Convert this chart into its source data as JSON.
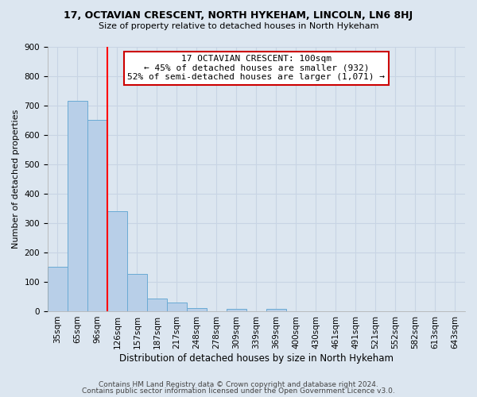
{
  "title": "17, OCTAVIAN CRESCENT, NORTH HYKEHAM, LINCOLN, LN6 8HJ",
  "subtitle": "Size of property relative to detached houses in North Hykeham",
  "xlabel": "Distribution of detached houses by size in North Hykeham",
  "ylabel": "Number of detached properties",
  "footer_line1": "Contains HM Land Registry data © Crown copyright and database right 2024.",
  "footer_line2": "Contains public sector information licensed under the Open Government Licence v3.0.",
  "bar_labels": [
    "35sqm",
    "65sqm",
    "96sqm",
    "126sqm",
    "157sqm",
    "187sqm",
    "217sqm",
    "248sqm",
    "278sqm",
    "309sqm",
    "339sqm",
    "369sqm",
    "400sqm",
    "430sqm",
    "461sqm",
    "491sqm",
    "521sqm",
    "552sqm",
    "582sqm",
    "613sqm",
    "643sqm"
  ],
  "bar_values": [
    150,
    715,
    650,
    340,
    127,
    42,
    30,
    12,
    0,
    8,
    0,
    8,
    0,
    0,
    0,
    0,
    0,
    0,
    0,
    0,
    0
  ],
  "bar_color": "#b8cfe8",
  "bar_edge_color": "#6aaad4",
  "red_line_x": 2.5,
  "annotation_text": "17 OCTAVIAN CRESCENT: 100sqm\n← 45% of detached houses are smaller (932)\n52% of semi-detached houses are larger (1,071) →",
  "annotation_box_facecolor": "#ffffff",
  "annotation_box_edgecolor": "#cc0000",
  "ylim": [
    0,
    900
  ],
  "yticks": [
    0,
    100,
    200,
    300,
    400,
    500,
    600,
    700,
    800,
    900
  ],
  "grid_color": "#c8d4e4",
  "background_color": "#dce6f0",
  "title_fontsize": 9,
  "subtitle_fontsize": 8,
  "ylabel_fontsize": 8,
  "xlabel_fontsize": 8.5,
  "tick_fontsize": 7.5,
  "footer_fontsize": 6.5
}
